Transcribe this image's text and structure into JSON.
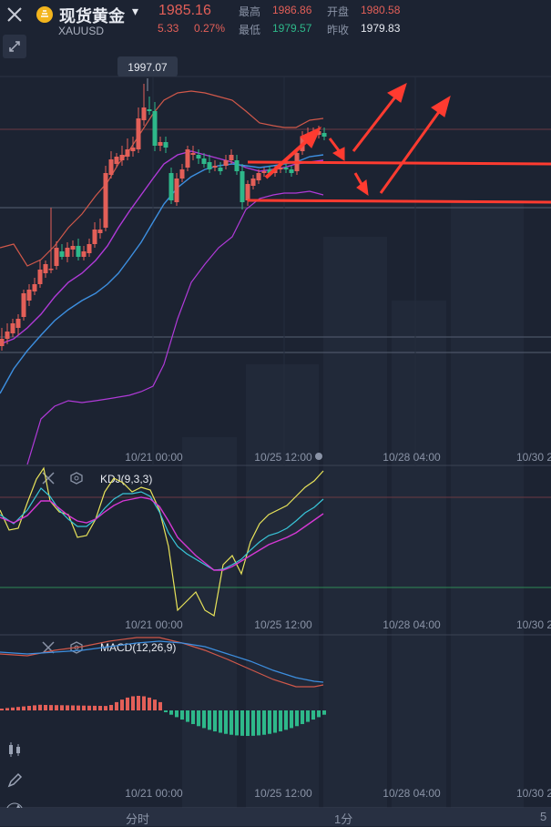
{
  "header": {
    "close_icon": "close-icon",
    "logo_icon": "gold-coin-icon",
    "title": "现货黄金",
    "title_caret": "▾",
    "symbol": "XAUUSD",
    "price": "1985.16",
    "change": "5.33",
    "change_pct": "0.27%",
    "high_label": "最高",
    "high_value": "1986.86",
    "open_label": "开盘",
    "open_value": "1980.58",
    "low_label": "最低",
    "low_value": "1979.57",
    "prev_close_label": "昨收",
    "prev_close_value": "1979.83"
  },
  "colors": {
    "background": "#1c2332",
    "up": "#e35f58",
    "down": "#2eb88a",
    "ma_red": "#d0584a",
    "ma_purple": "#b03ad8",
    "ma_blue": "#3d8fe0",
    "kdj_k": "#39c5d8",
    "kdj_d": "#d538d4",
    "kdj_j": "#e8e35a",
    "annotation": "#ff3b30"
  },
  "main_chart": {
    "max_label": "1997.07",
    "x_labels": [
      "10/21 00:00",
      "10/25 12:00",
      "10/28 04:00",
      "10/30 2"
    ]
  },
  "kdj": {
    "label": "KDJ(9,3,3)",
    "x_labels": [
      "10/21 00:00",
      "10/25 12:00",
      "10/28 04:00",
      "10/30 2"
    ]
  },
  "macd": {
    "label": "MACD(12,26,9)",
    "x_labels": [
      "10/21 00:00",
      "10/25 12:00",
      "10/28 04:00",
      "10/30 2"
    ]
  },
  "toolbar": {
    "expand_icon": "expand-icon",
    "candle_icon": "candlestick-icon",
    "draw_icon": "pencil-icon",
    "indicator_icon": "indicator-icon"
  },
  "tabs": {
    "minute": "分时",
    "one_min": "1分",
    "five_min": "5"
  }
}
